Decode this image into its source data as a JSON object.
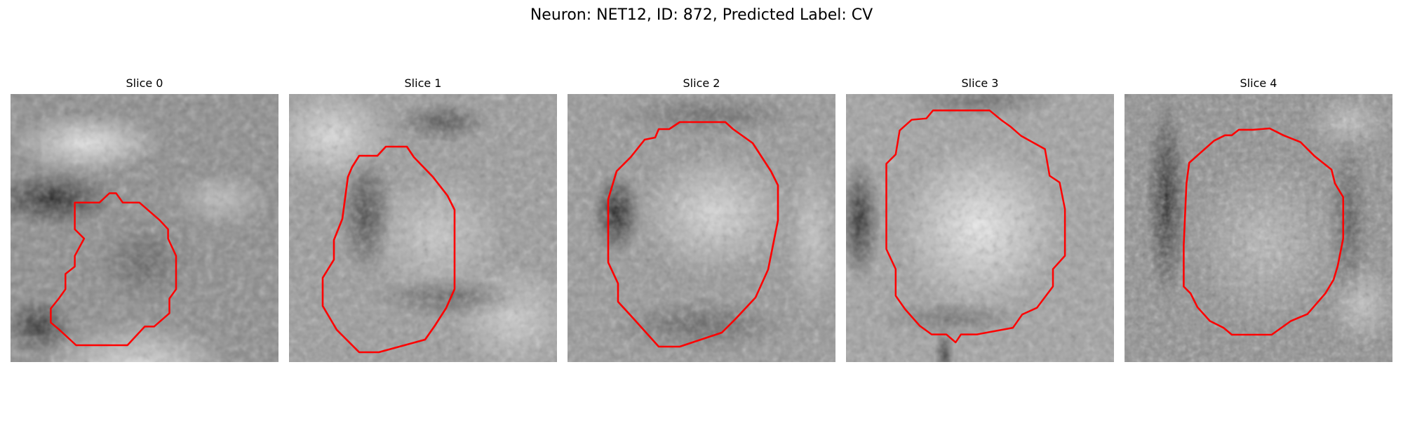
{
  "figure": {
    "title": "Neuron: NET12, ID: 872, Predicted Label: CV"
  },
  "panels": [
    {
      "title": "Slice 0",
      "image": "grayscale microscopy patch of a cell soma with red contour outline"
    },
    {
      "title": "Slice 1",
      "image": "grayscale microscopy patch of a cell soma with red contour outline"
    },
    {
      "title": "Slice 2",
      "image": "grayscale microscopy patch of a cell soma with red contour outline"
    },
    {
      "title": "Slice 3",
      "image": "grayscale microscopy patch of a cell soma with red contour outline"
    },
    {
      "title": "Slice 4",
      "image": "grayscale microscopy patch of a cell soma with red contour outline"
    }
  ],
  "colors": {
    "contour": "#ff0000",
    "background": "#ffffff"
  }
}
